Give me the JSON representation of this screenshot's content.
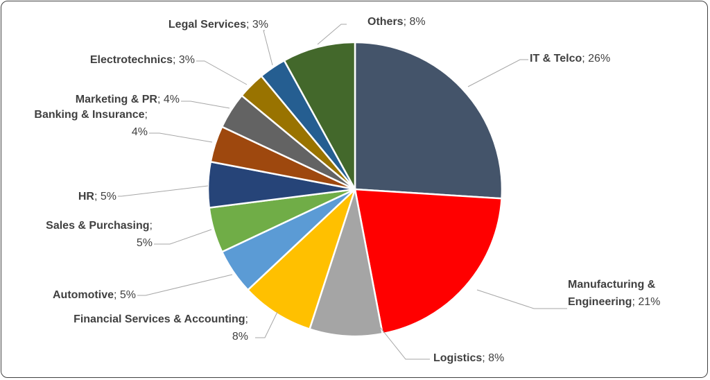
{
  "chart_data": {
    "type": "pie",
    "title": "",
    "start_angle_deg": 0,
    "direction": "clockwise",
    "slices": [
      {
        "name": "IT & Telco",
        "value": 26,
        "label_value": "26%",
        "color": "#44546a"
      },
      {
        "name": "Manufacturing & Engineering",
        "value": 21,
        "label_value": "21%",
        "color": "#ff0000"
      },
      {
        "name": "Logistics",
        "value": 8,
        "label_value": "8%",
        "color": "#a5a5a5"
      },
      {
        "name": "Financial Services & Accounting",
        "value": 8,
        "label_value": "8%",
        "color": "#ffc000"
      },
      {
        "name": "Automotive",
        "value": 5,
        "label_value": "5%",
        "color": "#5b9bd5"
      },
      {
        "name": "Sales & Purchasing",
        "value": 5,
        "label_value": "5%",
        "color": "#70ad47"
      },
      {
        "name": "HR",
        "value": 5,
        "label_value": "5%",
        "color": "#264478"
      },
      {
        "name": "Banking & Insurance",
        "value": 4,
        "label_value": "4%",
        "color": "#9e480e"
      },
      {
        "name": "Marketing & PR",
        "value": 4,
        "label_value": "4%",
        "color": "#636363"
      },
      {
        "name": "Electrotechnics",
        "value": 3,
        "label_value": "3%",
        "color": "#997300"
      },
      {
        "name": "Legal Services",
        "value": 3,
        "label_value": "3%",
        "color": "#255e91"
      },
      {
        "name": "Others",
        "value": 8,
        "label_value": "8%",
        "color": "#43682b"
      }
    ],
    "labels": [
      {
        "lines": [
          [
            {
              "t": "IT & Telco",
              "b": true
            },
            {
              "t": "; 26%",
              "b": false
            }
          ]
        ]
      },
      {
        "lines": [
          [
            {
              "t": "Manufacturing &",
              "b": true
            }
          ],
          [
            {
              "t": "Engineering",
              "b": true
            },
            {
              "t": "; 21%",
              "b": false
            }
          ]
        ]
      },
      {
        "lines": [
          [
            {
              "t": "Logistics",
              "b": true
            },
            {
              "t": "; 8%",
              "b": false
            }
          ]
        ]
      },
      {
        "lines": [
          [
            {
              "t": "Financial Services & Accounting",
              "b": true
            },
            {
              "t": ";",
              "b": false
            }
          ],
          [
            {
              "t": "8%",
              "b": false
            }
          ]
        ]
      },
      {
        "lines": [
          [
            {
              "t": "Automotive",
              "b": true
            },
            {
              "t": "; 5%",
              "b": false
            }
          ]
        ]
      },
      {
        "lines": [
          [
            {
              "t": "Sales & Purchasing",
              "b": true
            },
            {
              "t": ";",
              "b": false
            }
          ],
          [
            {
              "t": "5%",
              "b": false
            }
          ]
        ]
      },
      {
        "lines": [
          [
            {
              "t": "HR",
              "b": true
            },
            {
              "t": "; 5%",
              "b": false
            }
          ]
        ]
      },
      {
        "lines": [
          [
            {
              "t": "Banking & Insurance",
              "b": true
            },
            {
              "t": ";",
              "b": false
            }
          ],
          [
            {
              "t": "4%",
              "b": false
            }
          ]
        ]
      },
      {
        "lines": [
          [
            {
              "t": "Marketing & PR",
              "b": true
            },
            {
              "t": "; 4%",
              "b": false
            }
          ]
        ]
      },
      {
        "lines": [
          [
            {
              "t": "Electrotechnics",
              "b": true
            },
            {
              "t": "; 3%",
              "b": false
            }
          ]
        ]
      },
      {
        "lines": [
          [
            {
              "t": "Legal Services",
              "b": true
            },
            {
              "t": "; 3%",
              "b": false
            }
          ]
        ]
      },
      {
        "lines": [
          [
            {
              "t": "Others",
              "b": true
            },
            {
              "t": "; 8%",
              "b": false
            }
          ]
        ]
      }
    ],
    "legend": "none",
    "data_labels": "outside with leader lines"
  }
}
